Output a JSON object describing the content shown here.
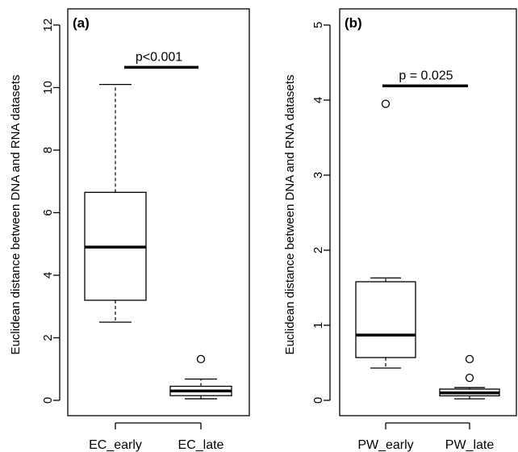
{
  "chart_data": [
    {
      "type": "box",
      "panel_label": "(a)",
      "ylabel": "Euclidean distance between DNA and RNA datasets",
      "ylim": [
        -0.4,
        12.2
      ],
      "yticks": [
        0,
        2,
        4,
        6,
        8,
        10,
        12
      ],
      "ytick_labels": [
        "0",
        "2",
        "4",
        "6",
        "8",
        "10",
        "12"
      ],
      "categories": [
        "EC_early",
        "EC_late"
      ],
      "boxes": [
        {
          "name": "EC_early",
          "whisker_low": 2.5,
          "q1": 3.2,
          "median": 4.9,
          "q3": 6.65,
          "whisker_high": 10.1,
          "outliers": []
        },
        {
          "name": "EC_late",
          "whisker_low": 0.05,
          "q1": 0.15,
          "median": 0.3,
          "q3": 0.45,
          "whisker_high": 0.68,
          "outliers": [
            1.32
          ]
        }
      ],
      "annotation": {
        "text": "p<0.001",
        "y": 10.65
      }
    },
    {
      "type": "box",
      "panel_label": "(b)",
      "ylabel": "Euclidean distance between DNA and RNA datasets",
      "ylim": [
        -0.2,
        5.1
      ],
      "yticks": [
        0,
        1,
        2,
        3,
        4,
        5
      ],
      "ytick_labels": [
        "0",
        "1",
        "2",
        "3",
        "4",
        "5"
      ],
      "categories": [
        "PW_early",
        "PW_late"
      ],
      "boxes": [
        {
          "name": "PW_early",
          "whisker_low": 0.43,
          "q1": 0.57,
          "median": 0.87,
          "q3": 1.58,
          "whisker_high": 1.63,
          "outliers": [
            3.95
          ]
        },
        {
          "name": "PW_late",
          "whisker_low": 0.02,
          "q1": 0.06,
          "median": 0.1,
          "q3": 0.15,
          "whisker_high": 0.17,
          "outliers": [
            0.55,
            0.3
          ]
        }
      ],
      "annotation": {
        "text": "p = 0.025",
        "y": 4.19
      }
    }
  ]
}
